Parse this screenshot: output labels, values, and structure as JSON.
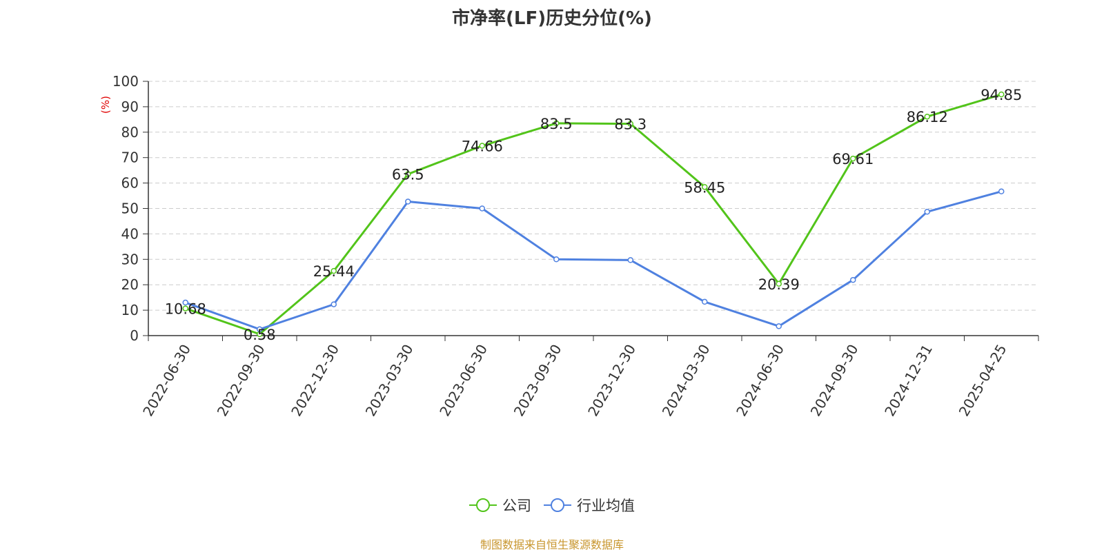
{
  "chart_data": {
    "type": "line",
    "title": "市净率(LF)历史分位(%)",
    "ylabel": "(%)",
    "ylim": [
      0,
      100
    ],
    "yticks": [
      0,
      10,
      20,
      30,
      40,
      50,
      60,
      70,
      80,
      90,
      100
    ],
    "grid": true,
    "legend_position": "bottom-center",
    "categories": [
      "2022-06-30",
      "2022-09-30",
      "2022-12-30",
      "2023-03-30",
      "2023-06-30",
      "2023-09-30",
      "2023-12-30",
      "2024-03-30",
      "2024-06-30",
      "2024-09-30",
      "2024-12-31",
      "2025-04-25"
    ],
    "series": [
      {
        "name": "公司",
        "color": "#52c41a",
        "values": [
          10.68,
          0.58,
          25.44,
          63.5,
          74.66,
          83.5,
          83.3,
          58.45,
          20.39,
          69.61,
          86.12,
          94.85
        ],
        "data_labels": [
          "10.68",
          "0.58",
          "25.44",
          "63.5",
          "74.66",
          "83.5",
          "83.3",
          "58.45",
          "20.39",
          "69.61",
          "86.12",
          "94.85"
        ]
      },
      {
        "name": "行业均值",
        "color": "#4f81e0",
        "values": [
          13.0,
          2.5,
          12.3,
          52.7,
          50.0,
          30.0,
          29.7,
          13.3,
          3.7,
          21.9,
          48.7,
          56.7
        ]
      }
    ]
  },
  "footer": {
    "source": "制图数据来自恒生聚源数据库"
  }
}
